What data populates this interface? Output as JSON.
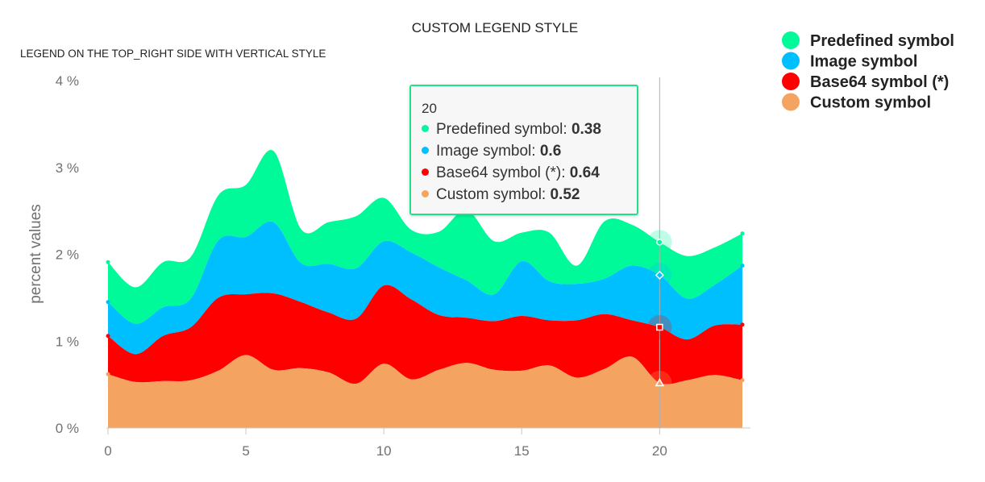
{
  "chart_data": {
    "type": "area",
    "stacked": true,
    "title": "CUSTOM LEGEND STYLE",
    "subtitle": "LEGEND ON THE TOP_RIGHT SIDE WITH VERTICAL STYLE",
    "ylabel": "percent values",
    "xlabel": "",
    "x": [
      0,
      1,
      2,
      3,
      4,
      5,
      6,
      7,
      8,
      9,
      10,
      11,
      12,
      13,
      14,
      15,
      16,
      17,
      18,
      19,
      20,
      21,
      22,
      23
    ],
    "xticks": [
      0,
      5,
      10,
      15,
      20
    ],
    "xtick_labels": [
      "0",
      "5",
      "10",
      "15",
      "20"
    ],
    "ylim": [
      0,
      4
    ],
    "yticks": [
      0,
      1,
      2,
      3,
      4
    ],
    "ytick_labels": [
      "0 %",
      "1 %",
      "2 %",
      "3 %",
      "4 %"
    ],
    "legend_position": "top-right",
    "series": [
      {
        "name": "Custom symbol",
        "color": "#f4a460",
        "symbol": "triangle",
        "values": [
          0.62,
          0.53,
          0.54,
          0.55,
          0.66,
          0.84,
          0.67,
          0.69,
          0.64,
          0.51,
          0.74,
          0.56,
          0.67,
          0.75,
          0.67,
          0.66,
          0.72,
          0.58,
          0.68,
          0.82,
          0.52,
          0.55,
          0.61,
          0.55
        ]
      },
      {
        "name": "Base64 symbol (*)",
        "color": "#ff0000",
        "symbol": "square",
        "values": [
          0.44,
          0.32,
          0.52,
          0.61,
          0.84,
          0.7,
          0.88,
          0.76,
          0.69,
          0.75,
          0.9,
          0.92,
          0.63,
          0.52,
          0.56,
          0.63,
          0.52,
          0.66,
          0.63,
          0.42,
          0.64,
          0.47,
          0.57,
          0.64
        ]
      },
      {
        "name": "Image symbol",
        "color": "#00bfff",
        "symbol": "diamond",
        "values": [
          0.39,
          0.35,
          0.33,
          0.33,
          0.66,
          0.66,
          0.82,
          0.45,
          0.56,
          0.58,
          0.51,
          0.54,
          0.55,
          0.43,
          0.31,
          0.63,
          0.45,
          0.42,
          0.41,
          0.63,
          0.6,
          0.47,
          0.47,
          0.68
        ]
      },
      {
        "name": "Predefined symbol",
        "color": "#00fa9a",
        "symbol": "circle",
        "values": [
          0.46,
          0.42,
          0.52,
          0.48,
          0.52,
          0.6,
          0.82,
          0.39,
          0.48,
          0.6,
          0.5,
          0.26,
          0.41,
          0.81,
          0.61,
          0.33,
          0.56,
          0.21,
          0.66,
          0.47,
          0.38,
          0.49,
          0.43,
          0.37
        ]
      }
    ],
    "legend_order": [
      "Predefined symbol",
      "Image symbol",
      "Base64 symbol (*)",
      "Custom symbol"
    ],
    "crosshair_x": 20
  },
  "tooltip": {
    "header": "20",
    "rows": [
      {
        "name": "Predefined symbol",
        "value": "0.38",
        "color": "#00fa9a"
      },
      {
        "name": "Image symbol",
        "value": "0.6",
        "color": "#00bfff"
      },
      {
        "name": "Base64 symbol (*)",
        "value": "0.64",
        "color": "#ff0000"
      },
      {
        "name": "Custom symbol",
        "value": "0.52",
        "color": "#f4a460"
      }
    ]
  }
}
